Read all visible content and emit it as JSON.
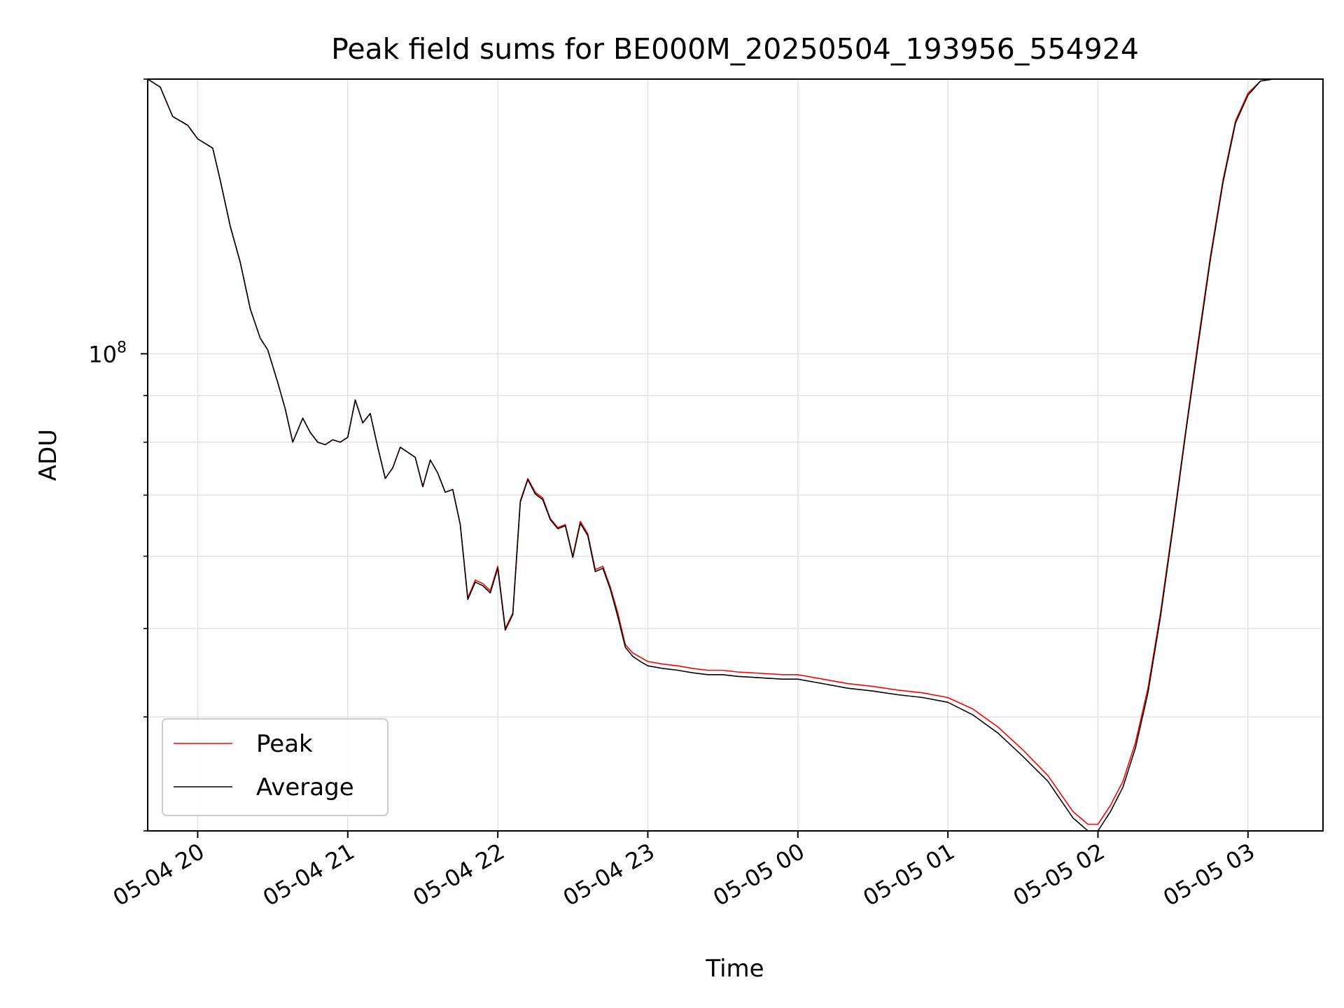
{
  "chart_data": {
    "type": "line",
    "title": "Peak field sums for BE000M_20250504_193956_554924",
    "xlabel": "Time",
    "ylabel": "ADU",
    "y_scale": "log",
    "ylim": [
      30000000.0,
      200000000.0
    ],
    "xlim": [
      "2025-05-04 19:40",
      "2025-05-05 03:30"
    ],
    "grid": true,
    "legend_position": "lower-left",
    "x_ticks": [
      {
        "time": "2025-05-04 20:00",
        "label": "05-04 20"
      },
      {
        "time": "2025-05-04 21:00",
        "label": "05-04 21"
      },
      {
        "time": "2025-05-04 22:00",
        "label": "05-04 22"
      },
      {
        "time": "2025-05-04 23:00",
        "label": "05-04 23"
      },
      {
        "time": "2025-05-05 00:00",
        "label": "05-05 00"
      },
      {
        "time": "2025-05-05 01:00",
        "label": "05-05 01"
      },
      {
        "time": "2025-05-05 02:00",
        "label": "05-05 02"
      },
      {
        "time": "2025-05-05 03:00",
        "label": "05-05 03"
      }
    ],
    "y_major_ticks": [
      {
        "value": 100000000.0,
        "label": "10^8",
        "base": "10",
        "exponent": "8"
      }
    ],
    "y_minor_ticks": [
      30000000.0,
      40000000.0,
      50000000.0,
      60000000.0,
      70000000.0,
      80000000.0,
      90000000.0,
      200000000.0
    ],
    "series": [
      {
        "name": "Peak",
        "color": "#ff0000",
        "points": [
          [
            "2025-05-04 19:40",
            200000000.0
          ],
          [
            "2025-05-04 19:45",
            196000000.0
          ],
          [
            "2025-05-04 19:50",
            182000000.0
          ],
          [
            "2025-05-04 19:56",
            178000000.0
          ],
          [
            "2025-05-04 20:00",
            172000000.0
          ],
          [
            "2025-05-04 20:03",
            170000000.0
          ],
          [
            "2025-05-04 20:06",
            168000000.0
          ],
          [
            "2025-05-04 20:09",
            155000000.0
          ],
          [
            "2025-05-04 20:13",
            138000000.0
          ],
          [
            "2025-05-04 20:17",
            126000000.0
          ],
          [
            "2025-05-04 20:21",
            112000000.0
          ],
          [
            "2025-05-04 20:25",
            104000000.0
          ],
          [
            "2025-05-04 20:28",
            101000000.0
          ],
          [
            "2025-05-04 20:32",
            93000000.0
          ],
          [
            "2025-05-04 20:35",
            87000000.0
          ],
          [
            "2025-05-04 20:38",
            80000000.0
          ],
          [
            "2025-05-04 20:42",
            85000000.0
          ],
          [
            "2025-05-04 20:45",
            82000000.0
          ],
          [
            "2025-05-04 20:48",
            80000000.0
          ],
          [
            "2025-05-04 20:51",
            79500000.0
          ],
          [
            "2025-05-04 20:54",
            80500000.0
          ],
          [
            "2025-05-04 20:57",
            80000000.0
          ],
          [
            "2025-05-04 21:00",
            81000000.0
          ],
          [
            "2025-05-04 21:03",
            89000000.0
          ],
          [
            "2025-05-04 21:06",
            84000000.0
          ],
          [
            "2025-05-04 21:09",
            86000000.0
          ],
          [
            "2025-05-04 21:12",
            79000000.0
          ],
          [
            "2025-05-04 21:15",
            73000000.0
          ],
          [
            "2025-05-04 21:18",
            75000000.0
          ],
          [
            "2025-05-04 21:21",
            79000000.0
          ],
          [
            "2025-05-04 21:24",
            78000000.0
          ],
          [
            "2025-05-04 21:27",
            77000000.0
          ],
          [
            "2025-05-04 21:30",
            71500000.0
          ],
          [
            "2025-05-04 21:33",
            76500000.0
          ],
          [
            "2025-05-04 21:36",
            74000000.0
          ],
          [
            "2025-05-04 21:39",
            70500000.0
          ],
          [
            "2025-05-04 21:42",
            71000000.0
          ],
          [
            "2025-05-04 21:45",
            65000000.0
          ],
          [
            "2025-05-04 21:48",
            54000000.0
          ],
          [
            "2025-05-04 21:51",
            56500000.0
          ],
          [
            "2025-05-04 21:54",
            56000000.0
          ],
          [
            "2025-05-04 21:57",
            55000000.0
          ],
          [
            "2025-05-04 22:00",
            58500000.0
          ],
          [
            "2025-05-04 22:03",
            50000000.0
          ],
          [
            "2025-05-04 22:06",
            52000000.0
          ],
          [
            "2025-05-04 22:09",
            69000000.0
          ],
          [
            "2025-05-04 22:12",
            73000000.0
          ],
          [
            "2025-05-04 22:15",
            70500000.0
          ],
          [
            "2025-05-04 22:18",
            69500000.0
          ],
          [
            "2025-05-04 22:21",
            66000000.0
          ],
          [
            "2025-05-04 22:24",
            64500000.0
          ],
          [
            "2025-05-04 22:27",
            65000000.0
          ],
          [
            "2025-05-04 22:30",
            60000000.0
          ],
          [
            "2025-05-04 22:33",
            65500000.0
          ],
          [
            "2025-05-04 22:36",
            63500000.0
          ],
          [
            "2025-05-04 22:39",
            58000000.0
          ],
          [
            "2025-05-04 22:42",
            58500000.0
          ],
          [
            "2025-05-04 22:45",
            55500000.0
          ],
          [
            "2025-05-04 22:48",
            52000000.0
          ],
          [
            "2025-05-04 22:51",
            48000000.0
          ],
          [
            "2025-05-04 22:54",
            47000000.0
          ],
          [
            "2025-05-04 22:57",
            46500000.0
          ],
          [
            "2025-05-04 23:00",
            46000000.0
          ],
          [
            "2025-05-04 23:06",
            45700000.0
          ],
          [
            "2025-05-04 23:12",
            45500000.0
          ],
          [
            "2025-05-04 23:18",
            45200000.0
          ],
          [
            "2025-05-04 23:24",
            45000000.0
          ],
          [
            "2025-05-04 23:30",
            45000000.0
          ],
          [
            "2025-05-04 23:36",
            44800000.0
          ],
          [
            "2025-05-04 23:42",
            44700000.0
          ],
          [
            "2025-05-04 23:48",
            44600000.0
          ],
          [
            "2025-05-04 23:54",
            44500000.0
          ],
          [
            "2025-05-05 00:00",
            44500000.0
          ],
          [
            "2025-05-05 00:10",
            44000000.0
          ],
          [
            "2025-05-05 00:20",
            43500000.0
          ],
          [
            "2025-05-05 00:30",
            43200000.0
          ],
          [
            "2025-05-05 00:40",
            42800000.0
          ],
          [
            "2025-05-05 00:50",
            42500000.0
          ],
          [
            "2025-05-05 01:00",
            42000000.0
          ],
          [
            "2025-05-05 01:10",
            40800000.0
          ],
          [
            "2025-05-05 01:20",
            39000000.0
          ],
          [
            "2025-05-05 01:30",
            36800000.0
          ],
          [
            "2025-05-05 01:40",
            34500000.0
          ],
          [
            "2025-05-05 01:50",
            31500000.0
          ],
          [
            "2025-05-05 01:56",
            30500000.0
          ],
          [
            "2025-05-05 02:00",
            30500000.0
          ],
          [
            "2025-05-05 02:05",
            32000000.0
          ],
          [
            "2025-05-05 02:10",
            34000000.0
          ],
          [
            "2025-05-05 02:15",
            37500000.0
          ],
          [
            "2025-05-05 02:20",
            43000000.0
          ],
          [
            "2025-05-05 02:25",
            52000000.0
          ],
          [
            "2025-05-05 02:30",
            65000000.0
          ],
          [
            "2025-05-05 02:35",
            82000000.0
          ],
          [
            "2025-05-05 02:40",
            103000000.0
          ],
          [
            "2025-05-05 02:45",
            128000000.0
          ],
          [
            "2025-05-05 02:50",
            155000000.0
          ],
          [
            "2025-05-05 02:55",
            180000000.0
          ],
          [
            "2025-05-05 03:00",
            193000000.0
          ],
          [
            "2025-05-05 03:05",
            199000000.0
          ],
          [
            "2025-05-05 03:10",
            200000000.0
          ],
          [
            "2025-05-05 03:30",
            200000000.0
          ]
        ]
      },
      {
        "name": "Average",
        "color": "#000000",
        "points": [
          [
            "2025-05-04 19:40",
            200000000.0
          ],
          [
            "2025-05-04 19:45",
            196000000.0
          ],
          [
            "2025-05-04 19:50",
            182000000.0
          ],
          [
            "2025-05-04 19:56",
            178000000.0
          ],
          [
            "2025-05-04 20:00",
            172000000.0
          ],
          [
            "2025-05-04 20:03",
            170000000.0
          ],
          [
            "2025-05-04 20:06",
            168000000.0
          ],
          [
            "2025-05-04 20:09",
            155000000.0
          ],
          [
            "2025-05-04 20:13",
            138000000.0
          ],
          [
            "2025-05-04 20:17",
            126000000.0
          ],
          [
            "2025-05-04 20:21",
            112000000.0
          ],
          [
            "2025-05-04 20:25",
            104000000.0
          ],
          [
            "2025-05-04 20:28",
            101000000.0
          ],
          [
            "2025-05-04 20:32",
            93000000.0
          ],
          [
            "2025-05-04 20:35",
            87000000.0
          ],
          [
            "2025-05-04 20:38",
            80000000.0
          ],
          [
            "2025-05-04 20:42",
            85000000.0
          ],
          [
            "2025-05-04 20:45",
            82000000.0
          ],
          [
            "2025-05-04 20:48",
            80000000.0
          ],
          [
            "2025-05-04 20:51",
            79500000.0
          ],
          [
            "2025-05-04 20:54",
            80500000.0
          ],
          [
            "2025-05-04 20:57",
            80000000.0
          ],
          [
            "2025-05-04 21:00",
            81000000.0
          ],
          [
            "2025-05-04 21:03",
            89000000.0
          ],
          [
            "2025-05-04 21:06",
            84000000.0
          ],
          [
            "2025-05-04 21:09",
            86000000.0
          ],
          [
            "2025-05-04 21:12",
            79000000.0
          ],
          [
            "2025-05-04 21:15",
            73000000.0
          ],
          [
            "2025-05-04 21:18",
            75000000.0
          ],
          [
            "2025-05-04 21:21",
            79000000.0
          ],
          [
            "2025-05-04 21:24",
            78000000.0
          ],
          [
            "2025-05-04 21:27",
            77000000.0
          ],
          [
            "2025-05-04 21:30",
            71500000.0
          ],
          [
            "2025-05-04 21:33",
            76500000.0
          ],
          [
            "2025-05-04 21:36",
            74000000.0
          ],
          [
            "2025-05-04 21:39",
            70500000.0
          ],
          [
            "2025-05-04 21:42",
            71000000.0
          ],
          [
            "2025-05-04 21:45",
            65000000.0
          ],
          [
            "2025-05-04 21:48",
            53800000.0
          ],
          [
            "2025-05-04 21:51",
            56200000.0
          ],
          [
            "2025-05-04 21:54",
            55700000.0
          ],
          [
            "2025-05-04 21:57",
            54700000.0
          ],
          [
            "2025-05-04 22:00",
            58200000.0
          ],
          [
            "2025-05-04 22:03",
            49800000.0
          ],
          [
            "2025-05-04 22:06",
            51800000.0
          ],
          [
            "2025-05-04 22:09",
            68800000.0
          ],
          [
            "2025-05-04 22:12",
            72800000.0
          ],
          [
            "2025-05-04 22:15",
            70200000.0
          ],
          [
            "2025-05-04 22:18",
            69200000.0
          ],
          [
            "2025-05-04 22:21",
            65800000.0
          ],
          [
            "2025-05-04 22:24",
            64300000.0
          ],
          [
            "2025-05-04 22:27",
            64800000.0
          ],
          [
            "2025-05-04 22:30",
            59800000.0
          ],
          [
            "2025-05-04 22:33",
            65200000.0
          ],
          [
            "2025-05-04 22:36",
            63200000.0
          ],
          [
            "2025-05-04 22:39",
            57700000.0
          ],
          [
            "2025-05-04 22:42",
            58200000.0
          ],
          [
            "2025-05-04 22:45",
            55200000.0
          ],
          [
            "2025-05-04 22:48",
            51500000.0
          ],
          [
            "2025-05-04 22:51",
            47700000.0
          ],
          [
            "2025-05-04 22:54",
            46600000.0
          ],
          [
            "2025-05-04 22:57",
            46000000.0
          ],
          [
            "2025-05-04 23:00",
            45500000.0
          ],
          [
            "2025-05-04 23:06",
            45200000.0
          ],
          [
            "2025-05-04 23:12",
            45000000.0
          ],
          [
            "2025-05-04 23:18",
            44700000.0
          ],
          [
            "2025-05-04 23:24",
            44500000.0
          ],
          [
            "2025-05-04 23:30",
            44500000.0
          ],
          [
            "2025-05-04 23:36",
            44300000.0
          ],
          [
            "2025-05-04 23:42",
            44200000.0
          ],
          [
            "2025-05-04 23:48",
            44100000.0
          ],
          [
            "2025-05-04 23:54",
            44000000.0
          ],
          [
            "2025-05-05 00:00",
            44000000.0
          ],
          [
            "2025-05-05 00:10",
            43500000.0
          ],
          [
            "2025-05-05 00:20",
            43000000.0
          ],
          [
            "2025-05-05 00:30",
            42700000.0
          ],
          [
            "2025-05-05 00:40",
            42300000.0
          ],
          [
            "2025-05-05 00:50",
            42000000.0
          ],
          [
            "2025-05-05 01:00",
            41500000.0
          ],
          [
            "2025-05-05 01:10",
            40200000.0
          ],
          [
            "2025-05-05 01:20",
            38400000.0
          ],
          [
            "2025-05-05 01:30",
            36200000.0
          ],
          [
            "2025-05-05 01:40",
            34000000.0
          ],
          [
            "2025-05-05 01:50",
            31000000.0
          ],
          [
            "2025-05-05 01:56",
            30000000.0
          ],
          [
            "2025-05-05 02:00",
            30000000.0
          ],
          [
            "2025-05-05 02:05",
            31500000.0
          ],
          [
            "2025-05-05 02:10",
            33500000.0
          ],
          [
            "2025-05-05 02:15",
            37000000.0
          ],
          [
            "2025-05-05 02:20",
            42500000.0
          ],
          [
            "2025-05-05 02:25",
            51500000.0
          ],
          [
            "2025-05-05 02:30",
            64500000.0
          ],
          [
            "2025-05-05 02:35",
            81500000.0
          ],
          [
            "2025-05-05 02:40",
            102000000.0
          ],
          [
            "2025-05-05 02:45",
            127000000.0
          ],
          [
            "2025-05-05 02:50",
            154000000.0
          ],
          [
            "2025-05-05 02:55",
            179000000.0
          ],
          [
            "2025-05-05 03:00",
            192000000.0
          ],
          [
            "2025-05-05 03:05",
            199000000.0
          ],
          [
            "2025-05-05 03:10",
            200000000.0
          ],
          [
            "2025-05-05 03:30",
            200000000.0
          ]
        ]
      }
    ]
  }
}
